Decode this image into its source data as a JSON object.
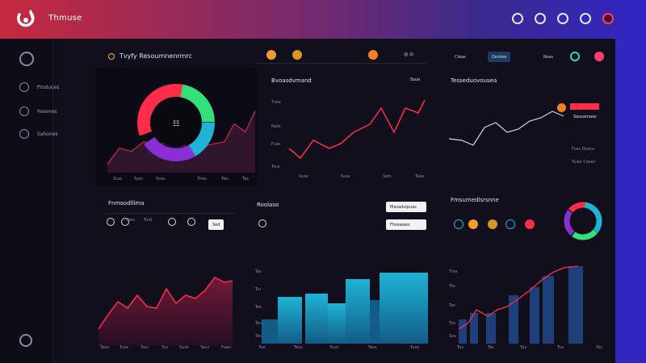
{
  "app": {
    "brand": "Thmuse"
  },
  "sidebar": {
    "items": [
      {
        "label": "Produces",
        "icon": "grid-icon"
      },
      {
        "label": "Heemes",
        "icon": "user-icon"
      },
      {
        "label": "Sahones",
        "icon": "settings-icon"
      }
    ]
  },
  "header": {
    "title": "Tvyfy Resoumnenrmrc",
    "pills": [
      "Cleas",
      "Onntee",
      "Roas"
    ]
  },
  "panels": {
    "donut_line": {
      "ticks": [
        "Slue",
        "Tyes",
        "Sses",
        "Thes",
        "Tws",
        "Tas"
      ]
    },
    "line_chart": {
      "title": "Bvoasdvmand",
      "legend": "Ssuo",
      "y_ticks": [
        "Tzee",
        "Rass",
        "Fues",
        "Tsce"
      ],
      "x_ticks": [
        "Ssse",
        "Ssse",
        "Sars",
        "Taas"
      ]
    },
    "right_line": {
      "title": "Tesseduovousea",
      "legend": "Sausamaso",
      "labels": [
        "Fuss Dosca",
        "Tuwo Cesas"
      ]
    },
    "summary_a": {
      "title": "Fnmsodlllma",
      "labels": [
        "Uwo",
        "Ture"
      ],
      "button": "Sed"
    },
    "summary_b": {
      "title": "Roolaso",
      "inputs": [
        "Masadulpuas",
        "Fhsewaes"
      ]
    },
    "summary_c": {
      "title": "Fmsumedlsrsnne"
    },
    "area_chart": {
      "x_ticks": [
        "Teao",
        "Tuos",
        "Tour",
        "Tus",
        "Sure",
        "Tauz",
        "Fuao"
      ]
    },
    "bar_chart": {
      "y_ticks": [
        "Tas",
        "Tur",
        "Tes",
        "Tes",
        "Tos"
      ],
      "x_ticks": [
        "Tue",
        "Tecs",
        "Tuus",
        "Tass",
        "Tues"
      ]
    },
    "combo_chart": {
      "y_ticks": [
        "Tms",
        "Tos",
        "Tes",
        "Tos",
        "Sos"
      ],
      "x_ticks": [
        "Tus",
        "Tes",
        "Tus",
        "Tus",
        "Tos"
      ]
    }
  },
  "colors": {
    "accent_red": "#ff2d4a",
    "accent_cyan": "#1fb3d6",
    "accent_green": "#35e07a",
    "bar_blue": "#1e3f7a"
  }
}
